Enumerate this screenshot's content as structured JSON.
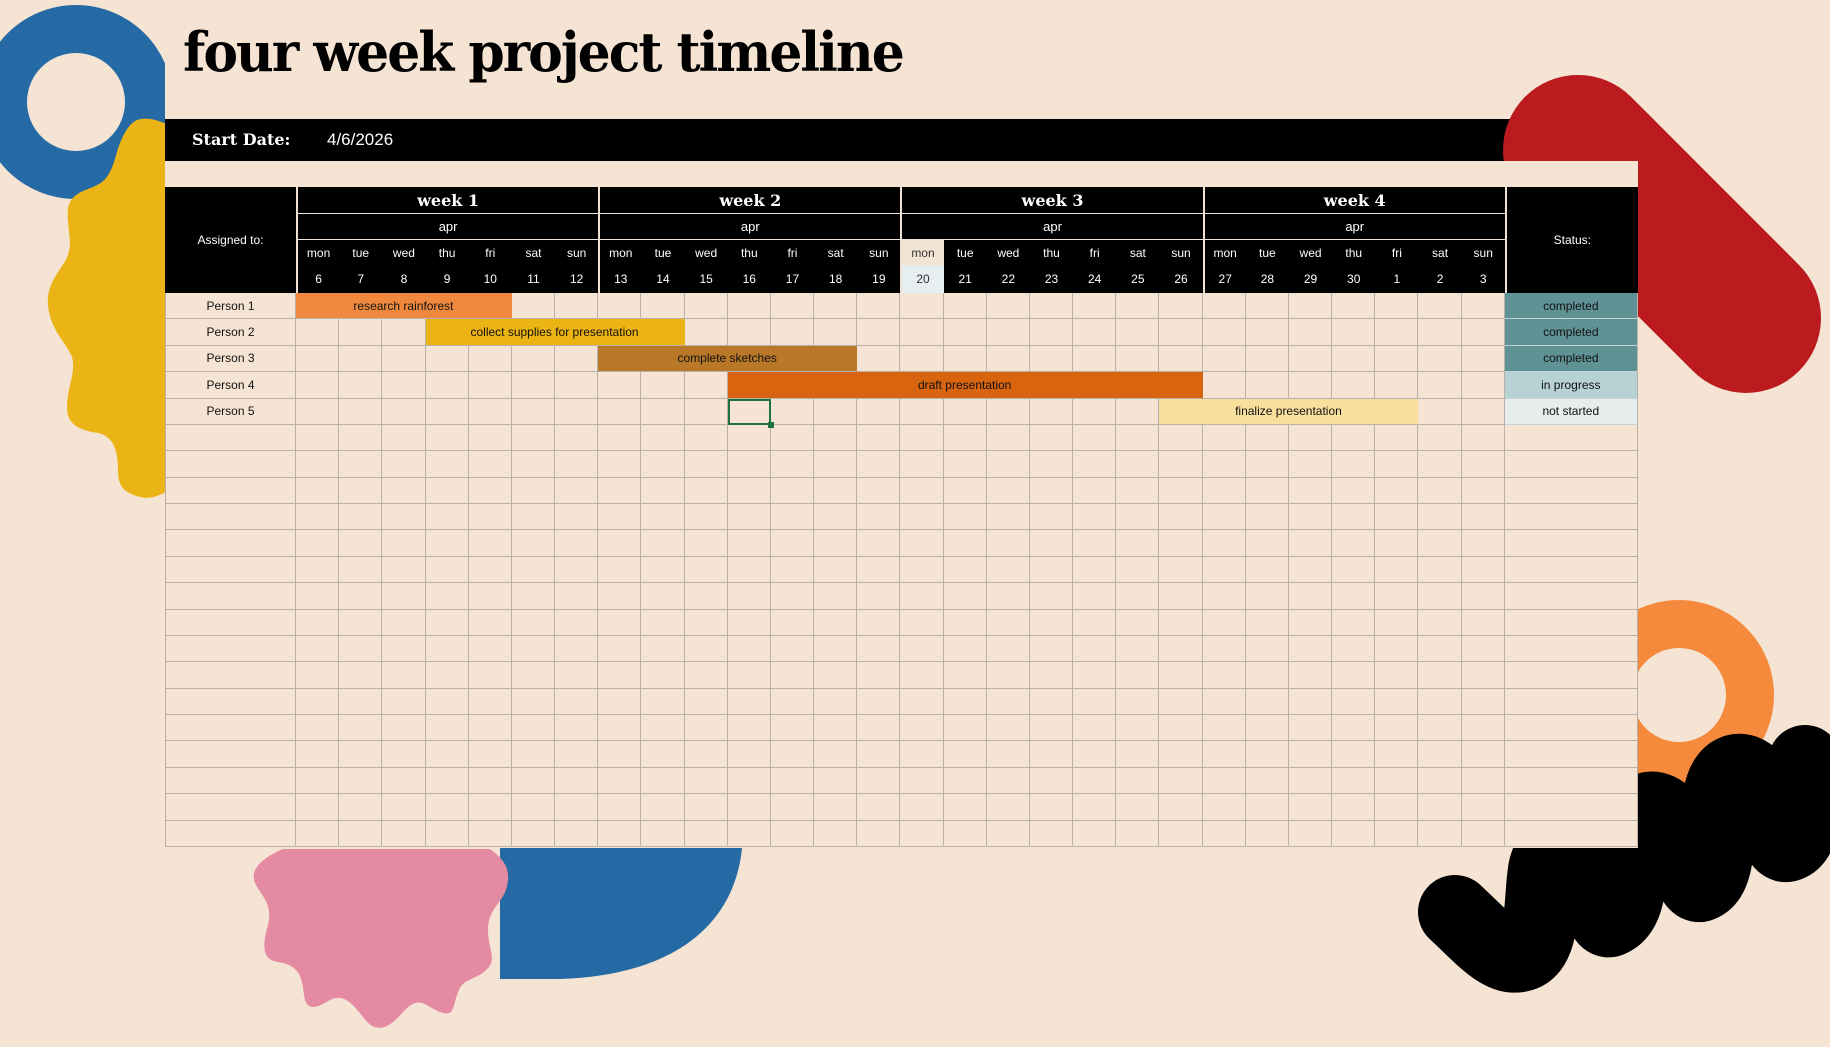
{
  "title": "four week project timeline",
  "start": {
    "label": "Start Date:",
    "value": "4/6/2026"
  },
  "table": {
    "assigned_header": "Assigned to:",
    "status_header": "Status:",
    "weeks": [
      {
        "label": "week 1",
        "month": "apr"
      },
      {
        "label": "week 2",
        "month": "apr"
      },
      {
        "label": "week 3",
        "month": "apr"
      },
      {
        "label": "week 4",
        "month": "apr"
      }
    ],
    "days": [
      {
        "dow": "mon",
        "date": "6"
      },
      {
        "dow": "tue",
        "date": "7"
      },
      {
        "dow": "wed",
        "date": "8"
      },
      {
        "dow": "thu",
        "date": "9"
      },
      {
        "dow": "fri",
        "date": "10"
      },
      {
        "dow": "sat",
        "date": "11"
      },
      {
        "dow": "sun",
        "date": "12"
      },
      {
        "dow": "mon",
        "date": "13"
      },
      {
        "dow": "tue",
        "date": "14"
      },
      {
        "dow": "wed",
        "date": "15"
      },
      {
        "dow": "thu",
        "date": "16"
      },
      {
        "dow": "fri",
        "date": "17"
      },
      {
        "dow": "sat",
        "date": "18"
      },
      {
        "dow": "sun",
        "date": "19"
      },
      {
        "dow": "mon",
        "date": "20"
      },
      {
        "dow": "tue",
        "date": "21"
      },
      {
        "dow": "wed",
        "date": "22"
      },
      {
        "dow": "thu",
        "date": "23"
      },
      {
        "dow": "fri",
        "date": "24"
      },
      {
        "dow": "sat",
        "date": "25"
      },
      {
        "dow": "sun",
        "date": "26"
      },
      {
        "dow": "mon",
        "date": "27"
      },
      {
        "dow": "tue",
        "date": "28"
      },
      {
        "dow": "wed",
        "date": "29"
      },
      {
        "dow": "thu",
        "date": "30"
      },
      {
        "dow": "fri",
        "date": "1"
      },
      {
        "dow": "sat",
        "date": "2"
      },
      {
        "dow": "sun",
        "date": "3"
      }
    ],
    "today_index": 14,
    "rows": [
      {
        "person": "Person 1",
        "task": "research rainforest",
        "start": 0,
        "end": 4,
        "color": "#f0893d",
        "status": "completed",
        "status_color": "#5f9294"
      },
      {
        "person": "Person 2",
        "task": "collect supplies for presentation",
        "start": 3,
        "end": 8,
        "color": "#ebb313",
        "status": "completed",
        "status_color": "#5f9294"
      },
      {
        "person": "Person 3",
        "task": "complete sketches",
        "start": 7,
        "end": 12,
        "color": "#b97828",
        "status": "completed",
        "status_color": "#5f9294"
      },
      {
        "person": "Person 4",
        "task": "draft presentation",
        "start": 10,
        "end": 20,
        "color": "#d8640f",
        "status": "in progress",
        "status_color": "#b7d2d4"
      },
      {
        "person": "Person 5",
        "task": "finalize presentation",
        "start": 20,
        "end": 25,
        "color": "#f8e09c",
        "status": "not started",
        "status_color": "#e7ecec"
      }
    ],
    "empty_rows": 16,
    "selected_cell": {
      "row": 4,
      "day": 10
    }
  },
  "colors": {
    "background": "#f5e4d3",
    "blue": "#256aa5",
    "yellow": "#ebb416",
    "red": "#bb1a1f",
    "orange": "#f58a3c",
    "pink": "#e48aa2",
    "black": "#000000"
  }
}
